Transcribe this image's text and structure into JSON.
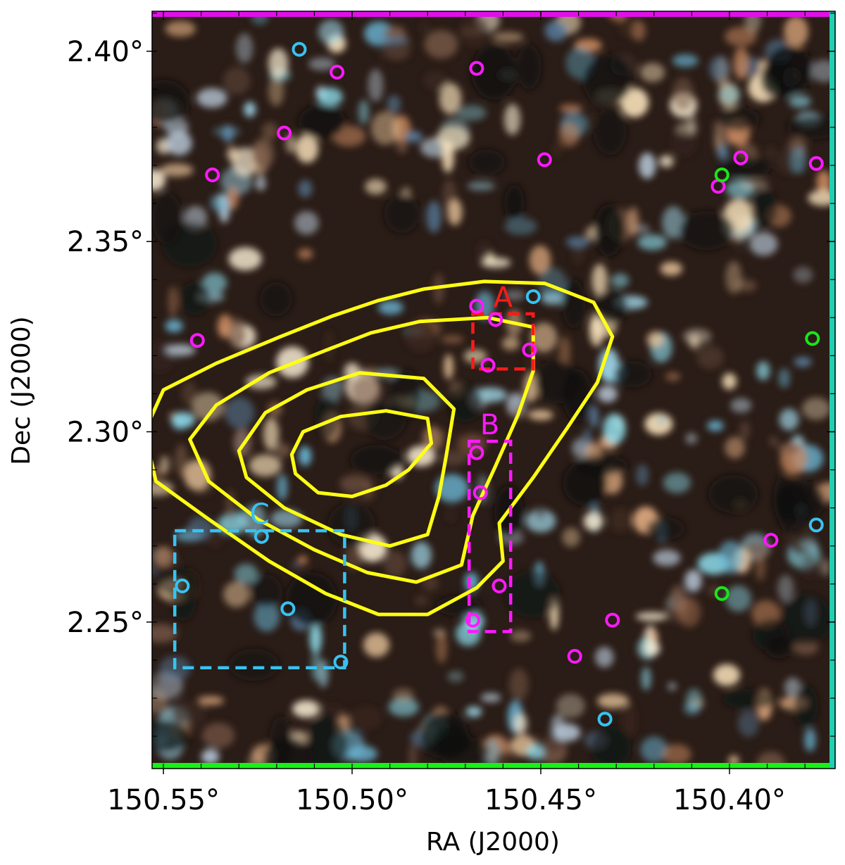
{
  "chart_data": {
    "type": "scatter",
    "title": "",
    "xlabel": "RA (J2000)",
    "ylabel": "Dec (J2000)",
    "x_reversed": true,
    "xlim": [
      150.553,
      150.372
    ],
    "ylim": [
      2.2115,
      2.4105
    ],
    "x_ticks": [
      150.55,
      150.5,
      150.45,
      150.4
    ],
    "x_tick_labels": [
      "150.55°",
      "150.50°",
      "150.45°",
      "150.40°"
    ],
    "y_ticks": [
      2.25,
      2.3,
      2.35,
      2.4
    ],
    "y_tick_labels": [
      "2.25°",
      "2.30°",
      "2.35°",
      "2.40°"
    ],
    "background": "three-color optical/infrared sky image (noisy blobs)",
    "colors": {
      "magenta": "#ff19ff",
      "cyan": "#38c2f0",
      "green": "#19e619",
      "contour": "#ffff14",
      "box_A": "#ff1a1a",
      "box_B": "#ff19ff",
      "box_C": "#38c2f0"
    },
    "series": [
      {
        "color": "magenta",
        "points": [
          [
            150.504,
            2.3945
          ],
          [
            150.467,
            2.3955
          ],
          [
            150.518,
            2.3785
          ],
          [
            150.537,
            2.3675
          ],
          [
            150.449,
            2.3715
          ],
          [
            150.403,
            2.3645
          ],
          [
            150.397,
            2.372
          ],
          [
            150.377,
            2.3705
          ],
          [
            150.541,
            2.324
          ],
          [
            150.467,
            2.333
          ],
          [
            150.462,
            2.3295
          ],
          [
            150.453,
            2.3215
          ],
          [
            150.464,
            2.3175
          ],
          [
            150.467,
            2.2945
          ],
          [
            150.466,
            2.284
          ],
          [
            150.461,
            2.2595
          ],
          [
            150.468,
            2.2505
          ],
          [
            150.389,
            2.2715
          ],
          [
            150.431,
            2.2505
          ],
          [
            150.441,
            2.241
          ]
        ]
      },
      {
        "color": "cyan",
        "points": [
          [
            150.514,
            2.4005
          ],
          [
            150.452,
            2.3355
          ],
          [
            150.377,
            2.2755
          ],
          [
            150.524,
            2.2725
          ],
          [
            150.545,
            2.2595
          ],
          [
            150.517,
            2.2535
          ],
          [
            150.503,
            2.2395
          ],
          [
            150.433,
            2.2245
          ]
        ]
      },
      {
        "color": "green",
        "points": [
          [
            150.402,
            2.3675
          ],
          [
            150.378,
            2.3245
          ],
          [
            150.402,
            2.2575
          ]
        ]
      }
    ],
    "contours": {
      "color": "yellow",
      "levels": 4,
      "paths": [
        [
          [
            150.555,
            2.3
          ],
          [
            150.55,
            2.311
          ],
          [
            150.536,
            2.318
          ],
          [
            150.519,
            2.325
          ],
          [
            150.505,
            2.3305
          ],
          [
            150.493,
            2.3345
          ],
          [
            150.481,
            2.3375
          ],
          [
            150.465,
            2.3395
          ],
          [
            150.449,
            2.339
          ],
          [
            150.436,
            2.334
          ],
          [
            150.431,
            2.325
          ],
          [
            150.435,
            2.313
          ],
          [
            150.443,
            2.301
          ],
          [
            150.452,
            2.288
          ],
          [
            150.461,
            2.276
          ],
          [
            150.46,
            2.266
          ],
          [
            150.467,
            2.259
          ],
          [
            150.48,
            2.252
          ],
          [
            150.493,
            2.252
          ],
          [
            150.507,
            2.2575
          ],
          [
            150.522,
            2.266
          ],
          [
            150.538,
            2.277
          ],
          [
            150.552,
            2.287
          ],
          [
            150.555,
            2.3
          ]
        ],
        [
          [
            150.543,
            2.298
          ],
          [
            150.536,
            2.307
          ],
          [
            150.522,
            2.3155
          ],
          [
            150.508,
            2.321
          ],
          [
            150.495,
            2.326
          ],
          [
            150.482,
            2.329
          ],
          [
            150.464,
            2.33
          ],
          [
            150.452,
            2.3275
          ],
          [
            150.452,
            2.316
          ],
          [
            150.456,
            2.3045
          ],
          [
            150.462,
            2.291
          ],
          [
            150.468,
            2.278
          ],
          [
            150.471,
            2.265
          ],
          [
            150.483,
            2.2605
          ],
          [
            150.496,
            2.263
          ],
          [
            150.51,
            2.269
          ],
          [
            150.525,
            2.277
          ],
          [
            150.538,
            2.287
          ],
          [
            150.543,
            2.298
          ]
        ],
        [
          [
            150.53,
            2.295
          ],
          [
            150.523,
            2.305
          ],
          [
            150.512,
            2.311
          ],
          [
            150.498,
            2.3155
          ],
          [
            150.481,
            2.314
          ],
          [
            150.473,
            2.306
          ],
          [
            150.475,
            2.294
          ],
          [
            150.477,
            2.283
          ],
          [
            150.48,
            2.273
          ],
          [
            150.49,
            2.27
          ],
          [
            150.503,
            2.273
          ],
          [
            150.518,
            2.28
          ],
          [
            150.528,
            2.288
          ],
          [
            150.53,
            2.295
          ]
        ],
        [
          [
            150.516,
            2.294
          ],
          [
            150.513,
            2.3
          ],
          [
            150.503,
            2.304
          ],
          [
            150.491,
            2.3055
          ],
          [
            150.48,
            2.3035
          ],
          [
            150.479,
            2.297
          ],
          [
            150.485,
            2.29
          ],
          [
            150.491,
            2.286
          ],
          [
            150.5,
            2.283
          ],
          [
            150.509,
            2.284
          ],
          [
            150.515,
            2.289
          ],
          [
            150.516,
            2.294
          ]
        ]
      ]
    },
    "boxes": [
      {
        "label": "A",
        "color": "red",
        "ra": [
          150.468,
          150.452
        ],
        "dec": [
          2.3165,
          2.331
        ]
      },
      {
        "label": "B",
        "color": "magenta",
        "ra": [
          150.469,
          150.458
        ],
        "dec": [
          2.2475,
          2.2975
        ]
      },
      {
        "label": "C",
        "color": "cyan",
        "ra": [
          150.547,
          150.502
        ],
        "dec": [
          2.238,
          2.274
        ]
      }
    ]
  }
}
